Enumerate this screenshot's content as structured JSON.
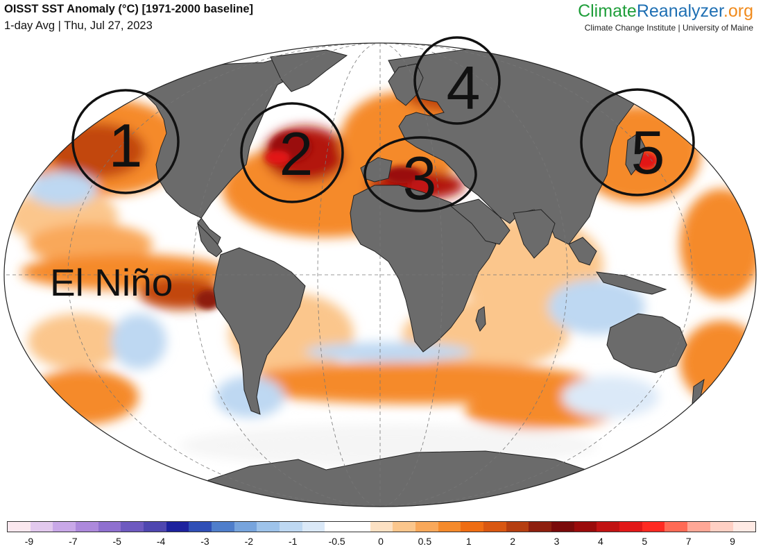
{
  "header": {
    "title": "OISST SST Anomaly (°C) [1971-2000 baseline]",
    "subtitle": "1-day Avg | Thu, Jul 27, 2023"
  },
  "brand": {
    "part1": "Climate",
    "part2": "Reanalyzer",
    "part3": ".org",
    "subline": "Climate Change Institute | University of Maine"
  },
  "annotations": {
    "region_labels": [
      "1",
      "2",
      "3",
      "4",
      "5"
    ],
    "enso_label": "El Niño"
  },
  "colorbar": {
    "tick_labels": [
      "-9",
      "-7",
      "-5",
      "-4",
      "-3",
      "-2",
      "-1",
      "-0.5",
      "0",
      "0.5",
      "1",
      "2",
      "3",
      "4",
      "5",
      "7",
      "9"
    ],
    "colors": [
      "#fbe8ef",
      "#e2c9ee",
      "#c9a8e8",
      "#ad89dc",
      "#8f70cf",
      "#6e5ac0",
      "#4f47b0",
      "#1d229e",
      "#2f4fb6",
      "#4f7ecb",
      "#77a4dd",
      "#9ec3ea",
      "#bed8f2",
      "#dbe9f8",
      "#ffffff",
      "#ffffff",
      "#fde1c3",
      "#fbc68c",
      "#f9a85a",
      "#f58a2b",
      "#ef6d13",
      "#d95711",
      "#b53e10",
      "#8e1f0e",
      "#7a0a0a",
      "#9a0b0b",
      "#c11313",
      "#e21818",
      "#ff2a22",
      "#ff6a55",
      "#ffa796",
      "#ffd0c4",
      "#ffeae4"
    ]
  },
  "map_colors": {
    "ocean_white": "#ffffff",
    "warm_light": "#fbc68c",
    "warm": "#f58a2b",
    "warm_dark": "#c2470f",
    "hot": "#b3160f",
    "cool": "#bed8f2",
    "cool_dark": "#77a4dd",
    "land": "#6b6b6b"
  }
}
